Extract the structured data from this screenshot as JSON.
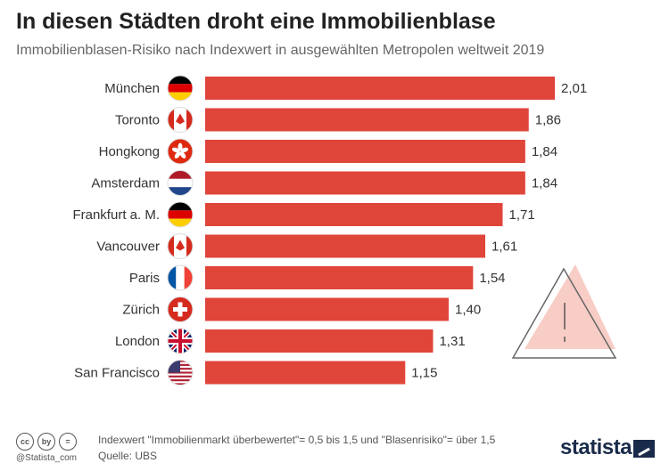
{
  "header": {
    "title": "In diesen Städten droht eine Immobilienblase",
    "subtitle": "Immobilienblasen-Risiko nach Indexwert in ausgewählten Metropolen weltweit 2019"
  },
  "chart_data": {
    "type": "bar",
    "orientation": "horizontal",
    "categories": [
      "München",
      "Toronto",
      "Hongkong",
      "Amsterdam",
      "Frankfurt a. M.",
      "Vancouver",
      "Paris",
      "Zürich",
      "London",
      "San Francisco"
    ],
    "values": [
      2.01,
      1.86,
      1.84,
      1.84,
      1.71,
      1.61,
      1.54,
      1.4,
      1.31,
      1.15
    ],
    "value_labels": [
      "2,01",
      "1,86",
      "1,84",
      "1,84",
      "1,71",
      "1,61",
      "1,54",
      "1,40",
      "1,31",
      "1,15"
    ],
    "flags": [
      "germany",
      "canada",
      "hongkong",
      "netherlands",
      "germany",
      "canada",
      "france",
      "switzerland",
      "uk",
      "usa"
    ],
    "bar_color": "#e0453a",
    "xlim": [
      0,
      2.01
    ],
    "grid": false,
    "legend": "none"
  },
  "footer": {
    "cc_icons": [
      "cc",
      "by",
      "="
    ],
    "handle": "@Statista_com",
    "note": "Indexwert \"Immobilienmarkt überbewertet\"= 0,5 bis 1,5 und \"Blasenrisiko\"= über 1,5",
    "source": "Quelle: UBS",
    "logo": "statista"
  },
  "colors": {
    "bar": "#e0453a",
    "warning": "#f8cdc6",
    "logo": "#1a2b4a"
  }
}
